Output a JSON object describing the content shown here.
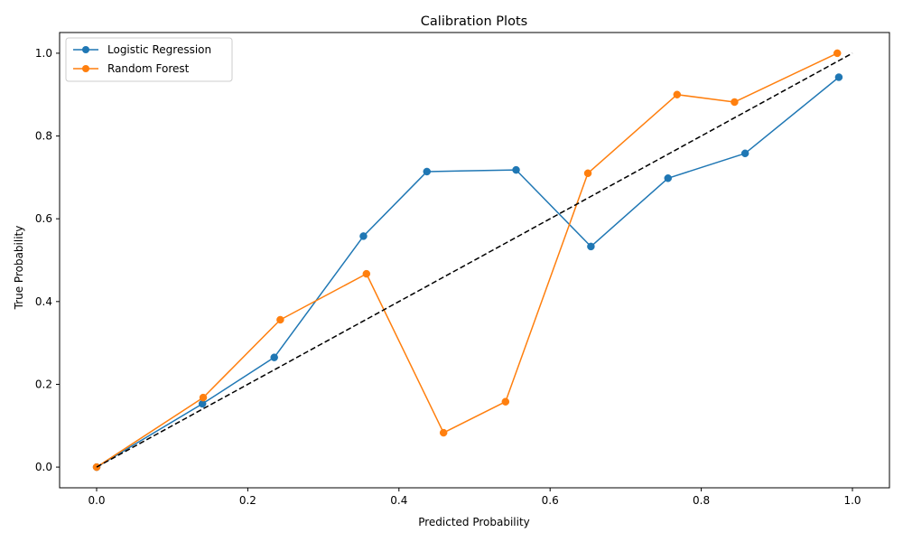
{
  "chart_data": {
    "type": "line",
    "title": "Calibration Plots",
    "xlabel": "Predicted Probability",
    "ylabel": "True Probability",
    "xlim": [
      -0.049,
      1.049
    ],
    "ylim": [
      -0.05,
      1.05
    ],
    "xticks": [
      "0.0",
      "0.2",
      "0.4",
      "0.6",
      "0.8",
      "1.0"
    ],
    "yticks": [
      "0.0",
      "0.2",
      "0.4",
      "0.6",
      "0.8",
      "1.0"
    ],
    "legend_position": "top-left",
    "grid": false,
    "series": [
      {
        "name": "Logistic Regression",
        "color": "#1f77b4",
        "marker": "circle",
        "x": [
          0.0,
          0.14,
          0.235,
          0.353,
          0.437,
          0.555,
          0.654,
          0.756,
          0.858,
          0.982
        ],
        "y": [
          0.0,
          0.153,
          0.265,
          0.558,
          0.714,
          0.718,
          0.533,
          0.698,
          0.758,
          0.942
        ]
      },
      {
        "name": "Random Forest",
        "color": "#ff7f0e",
        "marker": "circle",
        "x": [
          0.0,
          0.141,
          0.243,
          0.357,
          0.459,
          0.541,
          0.65,
          0.768,
          0.844,
          0.98
        ],
        "y": [
          0.0,
          0.168,
          0.356,
          0.467,
          0.083,
          0.158,
          0.71,
          0.9,
          0.882,
          1.0
        ]
      }
    ],
    "reference_line": {
      "color": "#000000",
      "style": "dashed",
      "x": [
        0,
        1
      ],
      "y": [
        0,
        1
      ]
    }
  }
}
